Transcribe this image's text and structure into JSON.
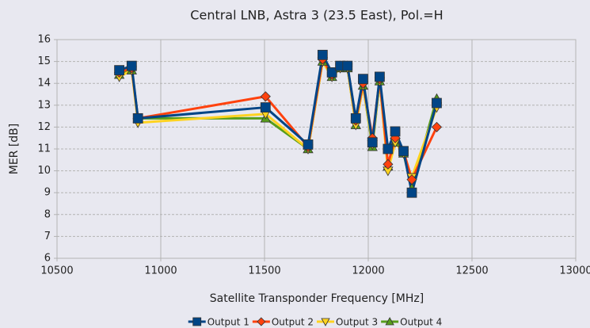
{
  "chart_data": {
    "type": "line",
    "title": "Central LNB, Astra 3 (23.5 East), Pol.=H",
    "x_label": "Satellite Transponder Frequency [MHz]",
    "y_label": "MER [dB]",
    "x": [
      10800,
      10860,
      10890,
      11505,
      11710,
      11780,
      11825,
      11865,
      11900,
      11940,
      11975,
      12020,
      12055,
      12095,
      12130,
      12170,
      12210,
      12330
    ],
    "series": [
      {
        "name": "Output 1",
        "color": "#004586",
        "marker": "square",
        "values": [
          14.6,
          14.8,
          12.4,
          12.9,
          11.2,
          15.3,
          14.5,
          14.8,
          14.8,
          12.4,
          14.2,
          11.3,
          14.3,
          11.0,
          11.8,
          10.9,
          9.0,
          13.1
        ]
      },
      {
        "name": "Output 2",
        "color": "#ff420e",
        "marker": "diamond",
        "values": [
          14.5,
          14.7,
          12.4,
          13.4,
          11.1,
          15.1,
          14.4,
          14.8,
          14.8,
          12.3,
          14.0,
          11.5,
          14.2,
          10.3,
          11.5,
          10.9,
          9.6,
          12.0
        ]
      },
      {
        "name": "Output 3",
        "color": "#ffd320",
        "marker": "triangle-down",
        "values": [
          14.3,
          14.6,
          12.2,
          12.6,
          11.0,
          15.0,
          14.3,
          14.7,
          14.7,
          12.1,
          13.9,
          11.2,
          14.1,
          10.0,
          11.3,
          10.8,
          9.7,
          12.9
        ]
      },
      {
        "name": "Output 4",
        "color": "#579d1c",
        "marker": "triangle-up",
        "values": [
          14.4,
          14.6,
          12.4,
          12.4,
          11.0,
          15.0,
          14.3,
          14.7,
          14.7,
          12.1,
          13.9,
          11.1,
          14.1,
          10.2,
          11.3,
          10.8,
          9.2,
          13.3
        ]
      }
    ],
    "xlim": [
      10500,
      13000
    ],
    "xticks": [
      10500,
      11000,
      11500,
      12000,
      12500,
      13000
    ],
    "ylim": [
      6,
      16
    ],
    "yticks": [
      6,
      7,
      8,
      9,
      10,
      11,
      12,
      13,
      14,
      15,
      16
    ],
    "grid": true,
    "legend": "bottom"
  }
}
